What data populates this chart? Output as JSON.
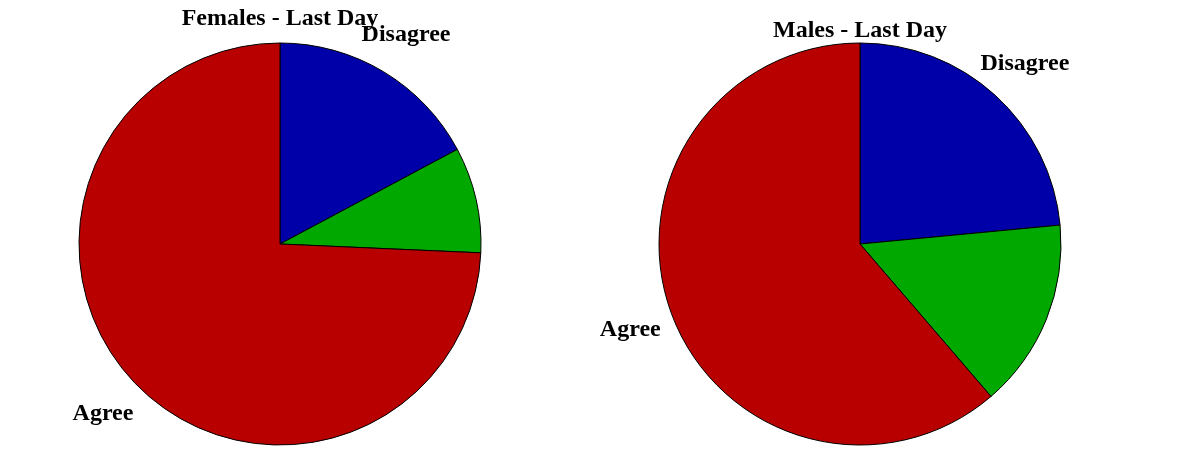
{
  "chart_data": [
    {
      "type": "pie",
      "title": "Females - Last Day",
      "categories": [
        "Disagree",
        null,
        "Agree"
      ],
      "values": [
        17.2,
        8.5,
        74.3
      ],
      "colors": [
        "#0000a8",
        "#00a800",
        "#b80000"
      ],
      "legend": false
    },
    {
      "type": "pie",
      "title": "Males - Last Day",
      "categories": [
        "Disagree",
        null,
        "Agree"
      ],
      "values": [
        23.5,
        15.2,
        61.3
      ],
      "colors": [
        "#0000a8",
        "#00a800",
        "#b80000"
      ],
      "legend": false
    }
  ]
}
